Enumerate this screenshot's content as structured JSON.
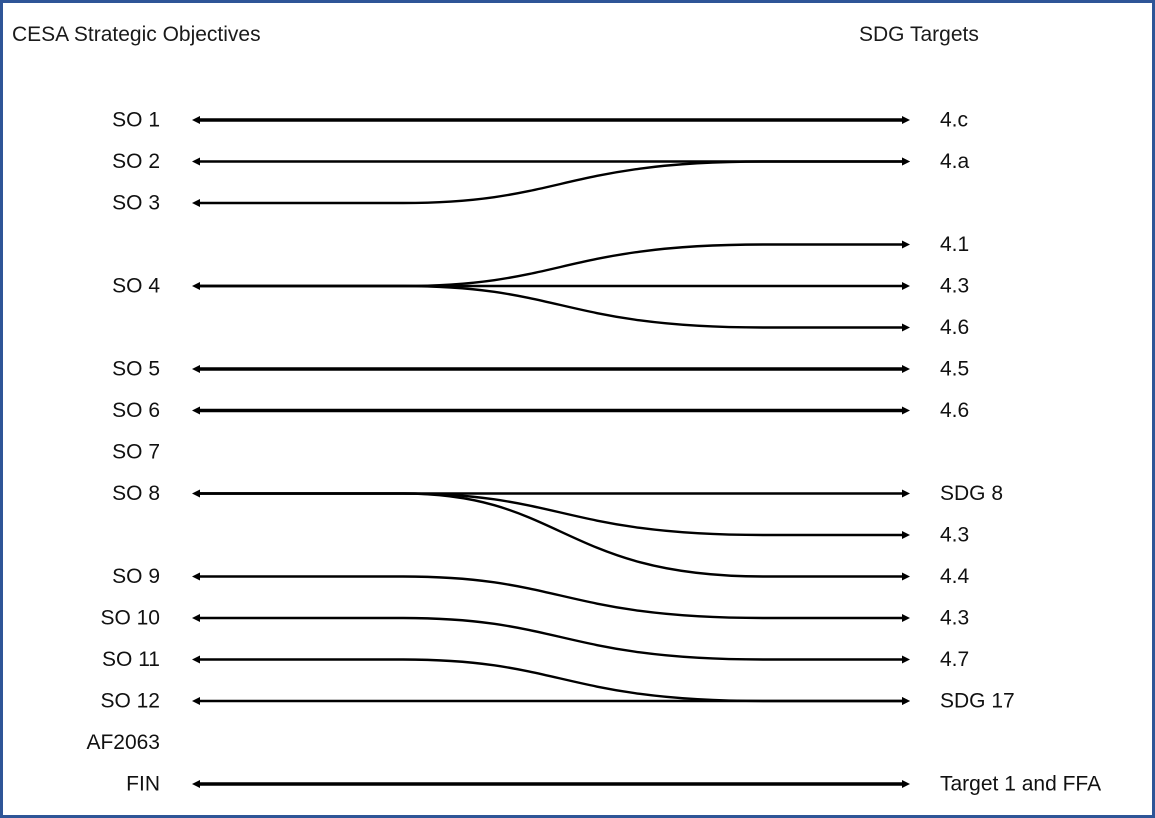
{
  "headers": {
    "left": "CESA Strategic Objectives",
    "right": "SDG Targets"
  },
  "colors": {
    "border": "#2f5597",
    "line": "#000000"
  },
  "objectives": [
    "SO 1",
    "SO 2",
    "SO 3",
    "SO 4",
    "SO 5",
    "SO 6",
    "SO 7",
    "SO 8",
    "SO 9",
    "SO 10",
    "SO 11",
    "SO 12",
    "AF2063",
    "FIN"
  ],
  "targets": [
    "4.c",
    "4.a",
    "4.1",
    "4.3",
    "4.6",
    "4.5",
    "4.6",
    "SDG 8",
    "4.3",
    "4.4",
    "4.3",
    "4.7",
    "SDG 17",
    "Target 1 and FFA"
  ],
  "links": [
    {
      "from": "SO 1",
      "to": "4.c",
      "bold": true
    },
    {
      "from": "SO 2",
      "to": "4.a",
      "bold": false
    },
    {
      "from": "SO 3",
      "to": "4.a",
      "bold": false
    },
    {
      "from": "SO 4",
      "to": "4.1",
      "bold": false
    },
    {
      "from": "SO 4",
      "to": "4.3",
      "bold": false
    },
    {
      "from": "SO 4",
      "to": "4.6",
      "bold": false
    },
    {
      "from": "SO 5",
      "to": "4.5",
      "bold": true
    },
    {
      "from": "SO 6",
      "to": "4.6",
      "bold": true
    },
    {
      "from": "SO 8",
      "to": "SDG 8",
      "bold": false
    },
    {
      "from": "SO 8",
      "to": "4.3",
      "bold": false
    },
    {
      "from": "SO 8",
      "to": "4.4",
      "bold": false
    },
    {
      "from": "SO 9",
      "to": "4.3",
      "bold": false
    },
    {
      "from": "SO 10",
      "to": "4.7",
      "bold": false
    },
    {
      "from": "SO 11",
      "to": "SDG 17",
      "bold": false
    },
    {
      "from": "SO 12",
      "to": "SDG 17",
      "bold": false
    },
    {
      "from": "FIN",
      "to": "Target 1 and FFA",
      "bold": true
    }
  ]
}
